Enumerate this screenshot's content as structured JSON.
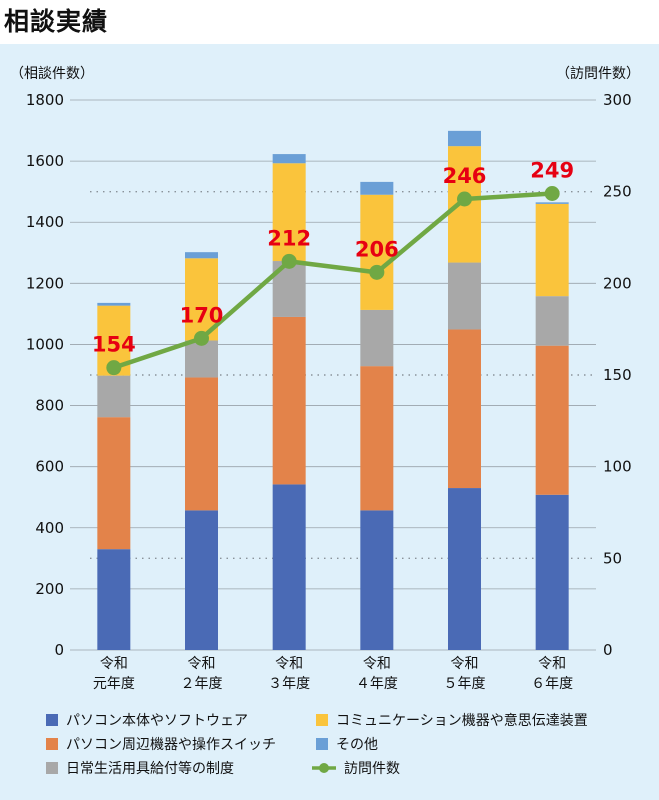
{
  "title": "相談実績",
  "chart_data": {
    "type": "bar",
    "stacked": true,
    "title": "相談実績",
    "ylabel_left": "（相談件数）",
    "ylabel_right": "（訪問件数）",
    "ylim_left": [
      0,
      1800
    ],
    "yticks_left": [
      0,
      200,
      400,
      600,
      800,
      1000,
      1200,
      1400,
      1600,
      1800
    ],
    "ylim_right": [
      0,
      300
    ],
    "yticks_right": [
      0,
      50,
      100,
      150,
      200,
      250,
      300
    ],
    "categories": [
      [
        "令和",
        "元年度"
      ],
      [
        "令和",
        "２年度"
      ],
      [
        "令和",
        "３年度"
      ],
      [
        "令和",
        "４年度"
      ],
      [
        "令和",
        "５年度"
      ],
      [
        "令和",
        "６年度"
      ]
    ],
    "series": [
      {
        "name": "パソコン本体やソフトウェア",
        "color": "#4a6ab5",
        "values": [
          330,
          457,
          542,
          457,
          530,
          508
        ]
      },
      {
        "name": "パソコン周辺機器や操作スイッチ",
        "color": "#e3834a",
        "values": [
          432,
          435,
          548,
          472,
          519,
          488
        ]
      },
      {
        "name": "日常生活用具給付等の制度",
        "color": "#a8a8a8",
        "values": [
          136,
          121,
          183,
          184,
          219,
          162
        ]
      },
      {
        "name": "コミュニケーション機器や意思伝達装置",
        "color": "#fac43c",
        "values": [
          229,
          269,
          320,
          377,
          381,
          302
        ]
      },
      {
        "name": "その他",
        "color": "#6a9fd6",
        "values": [
          9,
          20,
          30,
          42,
          50,
          5
        ]
      }
    ],
    "line_series": {
      "name": "訪問件数",
      "axis": "right",
      "color": "#70a844",
      "values": [
        154,
        170,
        212,
        206,
        246,
        249
      ]
    },
    "data_labels": [
      "154",
      "170",
      "212",
      "206",
      "246",
      "249"
    ],
    "gridlines_dotted_right": [
      50,
      150,
      250
    ],
    "legend_position": "bottom",
    "legend_order": [
      "パソコン本体やソフトウェア",
      "コミュニケーション機器や意思伝達装置",
      "パソコン周辺機器や操作スイッチ",
      "その他",
      "日常生活用具給付等の制度",
      "訪問件数"
    ]
  }
}
